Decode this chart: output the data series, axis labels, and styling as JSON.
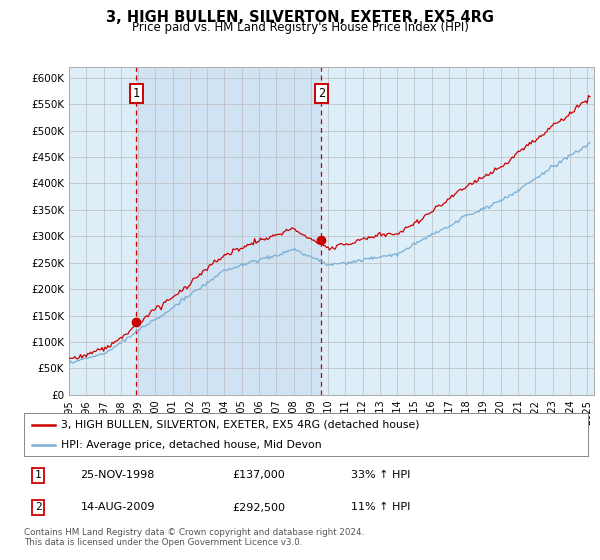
{
  "title": "3, HIGH BULLEN, SILVERTON, EXETER, EX5 4RG",
  "subtitle": "Price paid vs. HM Land Registry's House Price Index (HPI)",
  "legend_line1": "3, HIGH BULLEN, SILVERTON, EXETER, EX5 4RG (detached house)",
  "legend_line2": "HPI: Average price, detached house, Mid Devon",
  "annotation1_date": "25-NOV-1998",
  "annotation1_price": "£137,000",
  "annotation1_hpi": "33% ↑ HPI",
  "annotation1_year": 1998.9,
  "annotation1_value": 137000,
  "annotation2_date": "14-AUG-2009",
  "annotation2_price": "£292,500",
  "annotation2_hpi": "11% ↑ HPI",
  "annotation2_year": 2009.62,
  "annotation2_value": 292500,
  "footer": "Contains HM Land Registry data © Crown copyright and database right 2024.\nThis data is licensed under the Open Government Licence v3.0.",
  "red_color": "#cc0000",
  "blue_color": "#7aaed4",
  "bg_color": "#ddeef8",
  "shade_color": "#c8dcf0",
  "grid_color": "#bbbbbb",
  "ylim": [
    0,
    620000
  ],
  "yticks": [
    0,
    50000,
    100000,
    150000,
    200000,
    250000,
    300000,
    350000,
    400000,
    450000,
    500000,
    550000,
    600000
  ]
}
